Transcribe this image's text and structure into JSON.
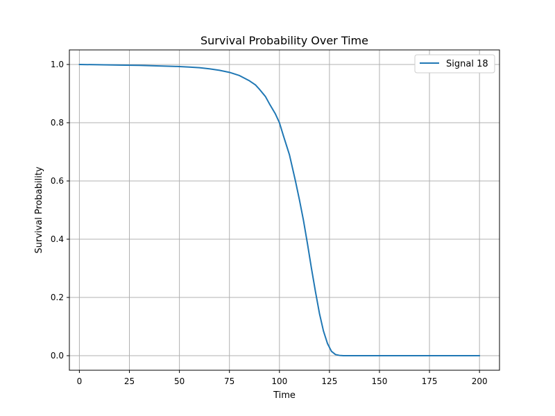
{
  "chart_data": {
    "type": "line",
    "title": "Survival Probability Over Time",
    "xlabel": "Time",
    "ylabel": "Survival Probability",
    "xlim": [
      -5,
      210
    ],
    "ylim": [
      -0.05,
      1.05
    ],
    "xticks": [
      0,
      25,
      50,
      75,
      100,
      125,
      150,
      175,
      200
    ],
    "yticks": [
      0.0,
      0.2,
      0.4,
      0.6,
      0.8,
      1.0
    ],
    "xtick_labels": [
      "0",
      "25",
      "50",
      "75",
      "100",
      "125",
      "150",
      "175",
      "200"
    ],
    "ytick_labels": [
      "0.0",
      "0.2",
      "0.4",
      "0.6",
      "0.8",
      "1.0"
    ],
    "grid": true,
    "legend_position": "top-right",
    "series": [
      {
        "name": "Signal 18",
        "color": "#1f77b4",
        "x": [
          0,
          10,
          20,
          30,
          40,
          50,
          55,
          60,
          65,
          70,
          75,
          80,
          85,
          88,
          90,
          93,
          95,
          98,
          100,
          102,
          105,
          108,
          110,
          112,
          114,
          116,
          118,
          120,
          122,
          124,
          126,
          128,
          130,
          132,
          135,
          140,
          150,
          160,
          170,
          180,
          190,
          200
        ],
        "y": [
          1.0,
          0.999,
          0.998,
          0.997,
          0.995,
          0.993,
          0.991,
          0.989,
          0.985,
          0.98,
          0.973,
          0.962,
          0.944,
          0.93,
          0.915,
          0.89,
          0.865,
          0.83,
          0.8,
          0.755,
          0.69,
          0.6,
          0.535,
          0.465,
          0.385,
          0.3,
          0.22,
          0.145,
          0.085,
          0.042,
          0.015,
          0.004,
          0.001,
          0.0,
          0.0,
          0.0,
          0.0,
          0.0,
          0.0,
          0.0,
          0.0,
          0.0
        ]
      }
    ]
  }
}
